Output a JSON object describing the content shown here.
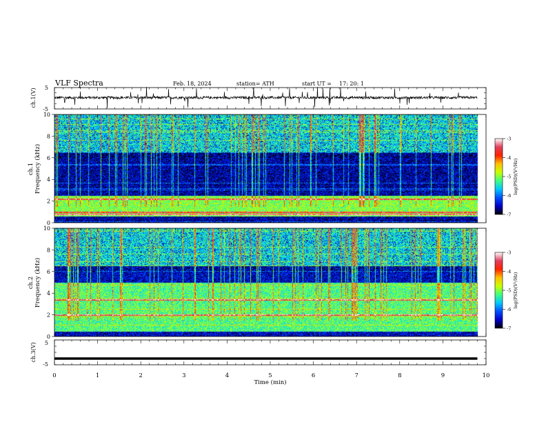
{
  "header": {
    "title": "VLF  Spectra",
    "date": "Feb. 18, 2024",
    "station": "station= ATH",
    "start_label": "start  UT  =",
    "start_time": "17: 20: 1"
  },
  "colors": {
    "spectrogram_stops": [
      "#000000",
      "#0000c8",
      "#0050ff",
      "#00c8ff",
      "#40ff80",
      "#c8ff00",
      "#ffc000",
      "#ff2000",
      "#e04060",
      "#ffffff"
    ],
    "trace": "#000000"
  },
  "chart_data": [
    {
      "type": "line",
      "name": "ch1-waveform",
      "ylabel": "ch.1(V)",
      "yticks": [
        "5",
        "-5"
      ],
      "ylim": [
        -5,
        5
      ],
      "xlim": [
        0,
        10
      ],
      "baseline": 0.3,
      "noise_amplitude": 0.6,
      "spike_density": "high",
      "data_extent_min": 9.8
    },
    {
      "type": "heatmap",
      "name": "ch1-spectrogram",
      "ylabel": "ch.1\nFrequency (kHz)",
      "ylabel_line1": "ch.1",
      "ylabel_line2": "Frequency (kHz)",
      "yticks": [
        "0",
        "2",
        "4",
        "6",
        "8",
        "10"
      ],
      "ylim_khz": [
        0,
        10
      ],
      "xlim_min": [
        0,
        10
      ],
      "data_extent_min": 9.8,
      "colorbar": {
        "label": "log(PSD)(V²/Hz)",
        "ticks": [
          "-3",
          "-4",
          "-5",
          "-6",
          "-7"
        ],
        "range": [
          -7,
          -3
        ]
      },
      "features": {
        "background_level": -6.6,
        "band_low_khz": [
          0.6,
          2.5
        ],
        "band_low_level": -5.0,
        "strong_lines_khz": [
          0.8,
          1.0,
          2.2
        ],
        "upper_noise_level": -5.3,
        "upper_noise_above_khz": 6.5
      }
    },
    {
      "type": "heatmap",
      "name": "ch2-spectrogram",
      "ylabel_line1": "ch.2",
      "ylabel_line2": "Frequency (kHz)",
      "yticks": [
        "0",
        "2",
        "4",
        "6",
        "8",
        "10"
      ],
      "ylim_khz": [
        0,
        10
      ],
      "xlim_min": [
        0,
        10
      ],
      "data_extent_min": 9.8,
      "colorbar": {
        "label": "log(PSD)(V²/Hz)",
        "ticks": [
          "-3",
          "-4",
          "-5",
          "-6",
          "-7"
        ],
        "range": [
          -7,
          -3
        ]
      },
      "features": {
        "background_level": -6.5,
        "band_low_khz": [
          0.5,
          5.0
        ],
        "band_low_level": -5.2,
        "strong_lines_khz": [
          2.0,
          3.4
        ],
        "upper_noise_level": -5.3,
        "upper_noise_above_khz": 6.5
      }
    },
    {
      "type": "line",
      "name": "ch3-waveform",
      "ylabel": "ch.3(V)",
      "yticks": [
        "5",
        "-5"
      ],
      "ylim": [
        -5,
        5
      ],
      "xlim": [
        0,
        10
      ],
      "baseline": -2.5,
      "noise_amplitude": 0.0,
      "data_extent_min": 9.8
    }
  ],
  "x_axis": {
    "label": "Time  (min)",
    "ticks": [
      "0",
      "1",
      "2",
      "3",
      "4",
      "5",
      "6",
      "7",
      "8",
      "9",
      "10"
    ]
  }
}
